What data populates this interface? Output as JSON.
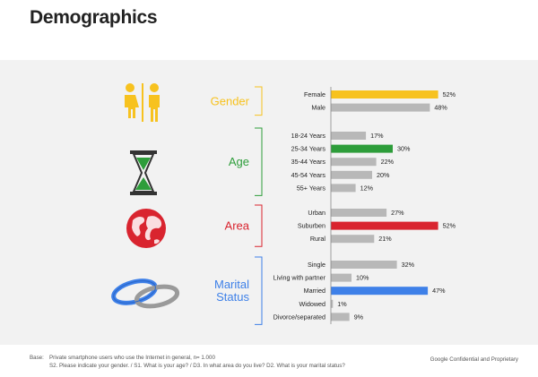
{
  "title": "Demographics",
  "footnote": {
    "label": "Base:",
    "line1": "Private smartphone users who use the Internet in general, n= 1.000",
    "line2": "S2. Please indicate your gender. / S1. What is your age? / D3. In what area do you live? D2. What is your marital status?"
  },
  "confidential": "Google Confidential and Proprietary",
  "colors": {
    "default_bar": "#b8b8b8",
    "gender": "#f7c21f",
    "age": "#2d9d3a",
    "area": "#d9242f",
    "marital": "#3e80e8"
  },
  "chart_data": [
    {
      "type": "bar",
      "orientation": "horizontal",
      "title": "Gender",
      "categories": [
        "Female",
        "Male"
      ],
      "values": [
        52,
        48
      ],
      "value_labels": [
        "52%",
        "48%"
      ],
      "highlight": "Female",
      "color": "#f7c21f",
      "icon": "man-woman-icon"
    },
    {
      "type": "bar",
      "orientation": "horizontal",
      "title": "Age",
      "categories": [
        "18-24 Years",
        "25-34 Years",
        "35-44 Years",
        "45-54 Years",
        "55+ Years"
      ],
      "values": [
        17,
        30,
        22,
        20,
        12
      ],
      "value_labels": [
        "17%",
        "30%",
        "22%",
        "20%",
        "12%"
      ],
      "highlight": "25-34 Years",
      "color": "#2d9d3a",
      "icon": "hourglass-icon"
    },
    {
      "type": "bar",
      "orientation": "horizontal",
      "title": "Area",
      "categories": [
        "Urban",
        "Suburben",
        "Rural"
      ],
      "values": [
        27,
        52,
        21
      ],
      "value_labels": [
        "27%",
        "52%",
        "21%"
      ],
      "highlight": "Suburben",
      "color": "#d9242f",
      "icon": "globe-icon"
    },
    {
      "type": "bar",
      "orientation": "horizontal",
      "title": "Marital\nStatus",
      "categories": [
        "Single",
        "Living with partner",
        "Married",
        "Widowed",
        "Divorce/separated"
      ],
      "values": [
        32,
        10,
        47,
        1,
        9
      ],
      "value_labels": [
        "32%",
        "10%",
        "47%",
        "1%",
        "9%"
      ],
      "highlight": "Married",
      "color": "#3e80e8",
      "icon": "wedding-rings-icon"
    }
  ]
}
